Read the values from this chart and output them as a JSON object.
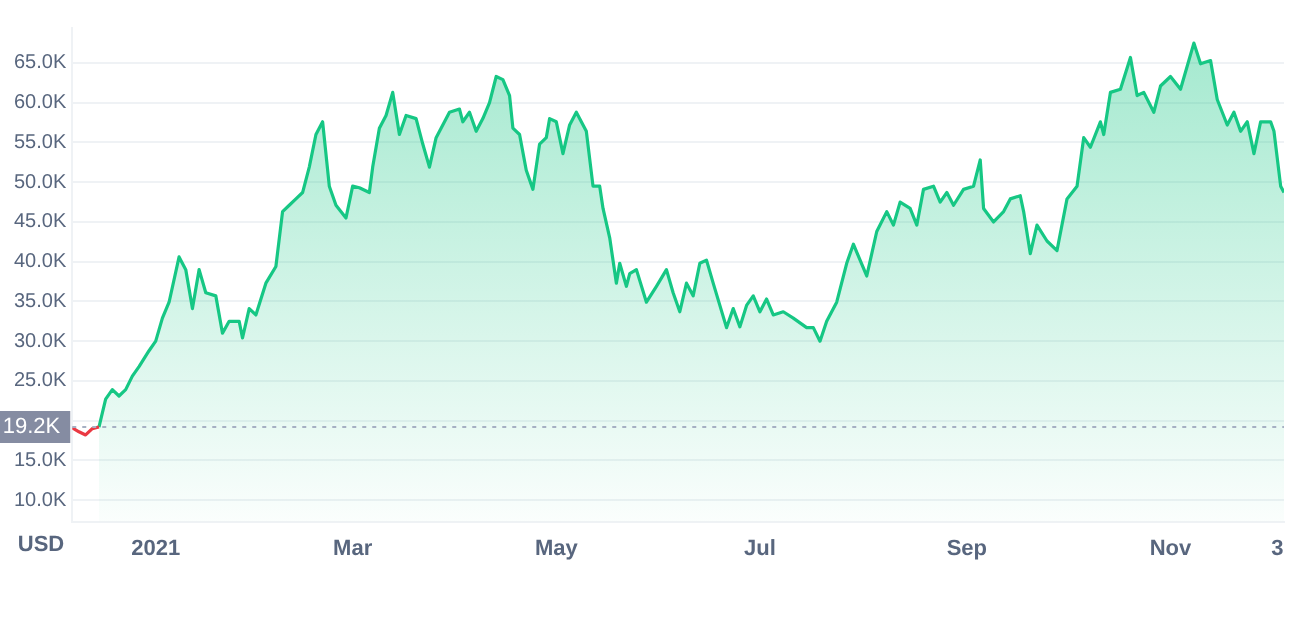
{
  "chart_data": {
    "type": "area",
    "ylabel": "USD",
    "xlim": [
      "2020-12-07",
      "2021-12-05"
    ],
    "ylim": [
      7300,
      69400
    ],
    "xticks": [
      {
        "value": "2021-01-01",
        "label": "2021"
      },
      {
        "value": "2021-03-01",
        "label": "Mar"
      },
      {
        "value": "2021-05-01",
        "label": "May"
      },
      {
        "value": "2021-07-01",
        "label": "Jul"
      },
      {
        "value": "2021-09-01",
        "label": "Sep"
      },
      {
        "value": "2021-11-01",
        "label": "Nov"
      },
      {
        "value": "2021-12-03",
        "label": "3"
      }
    ],
    "yticks": [
      {
        "value": 10000,
        "label": "10.0K"
      },
      {
        "value": 15000,
        "label": "15.0K"
      },
      {
        "value": 20000,
        "label": null
      },
      {
        "value": 25000,
        "label": "25.0K"
      },
      {
        "value": 30000,
        "label": "30.0K"
      },
      {
        "value": 35000,
        "label": "35.0K"
      },
      {
        "value": 40000,
        "label": "40.0K"
      },
      {
        "value": 45000,
        "label": "45.0K"
      },
      {
        "value": 50000,
        "label": "50.0K"
      },
      {
        "value": 55000,
        "label": "55.0K"
      },
      {
        "value": 60000,
        "label": "60.0K"
      },
      {
        "value": 65000,
        "label": "65.0K"
      }
    ],
    "grid": "y",
    "marker": "none",
    "ref_lines": [
      {
        "axis": "y",
        "value": 19200,
        "label": "19.2K",
        "color": "#a6b0c3",
        "line_style": "dotted"
      }
    ],
    "series": [
      {
        "type": "line",
        "color": "#ea3943",
        "x": [
          "2020-12-07",
          "2020-12-09",
          "2020-12-11",
          "2020-12-13",
          "2020-12-15"
        ],
        "values": [
          19100,
          18600,
          18200,
          19000,
          19200
        ]
      },
      {
        "color": "#16c784",
        "x": [
          "2020-12-15",
          "2020-12-17",
          "2020-12-19",
          "2020-12-21",
          "2020-12-23",
          "2020-12-25",
          "2020-12-27",
          "2020-12-30",
          "2021-01-01",
          "2021-01-03",
          "2021-01-05",
          "2021-01-08",
          "2021-01-10",
          "2021-01-12",
          "2021-01-14",
          "2021-01-16",
          "2021-01-19",
          "2021-01-21",
          "2021-01-23",
          "2021-01-26",
          "2021-01-27",
          "2021-01-29",
          "2021-01-31",
          "2021-02-03",
          "2021-02-06",
          "2021-02-08",
          "2021-02-10",
          "2021-02-12",
          "2021-02-14",
          "2021-02-16",
          "2021-02-18",
          "2021-02-20",
          "2021-02-22",
          "2021-02-24",
          "2021-02-27",
          "2021-03-01",
          "2021-03-03",
          "2021-03-06",
          "2021-03-07",
          "2021-03-09",
          "2021-03-11",
          "2021-03-13",
          "2021-03-15",
          "2021-03-17",
          "2021-03-20",
          "2021-03-22",
          "2021-03-24",
          "2021-03-26",
          "2021-03-30",
          "2021-04-02",
          "2021-04-03",
          "2021-04-05",
          "2021-04-07",
          "2021-04-09",
          "2021-04-11",
          "2021-04-13",
          "2021-04-15",
          "2021-04-17",
          "2021-04-18",
          "2021-04-20",
          "2021-04-22",
          "2021-04-24",
          "2021-04-26",
          "2021-04-28",
          "2021-04-29",
          "2021-05-01",
          "2021-05-03",
          "2021-05-05",
          "2021-05-07",
          "2021-05-10",
          "2021-05-12",
          "2021-05-14",
          "2021-05-15",
          "2021-05-17",
          "2021-05-19",
          "2021-05-20",
          "2021-05-22",
          "2021-05-23",
          "2021-05-25",
          "2021-05-28",
          "2021-05-31",
          "2021-06-03",
          "2021-06-05",
          "2021-06-07",
          "2021-06-09",
          "2021-06-11",
          "2021-06-13",
          "2021-06-15",
          "2021-06-17",
          "2021-06-21",
          "2021-06-23",
          "2021-06-25",
          "2021-06-27",
          "2021-06-29",
          "2021-07-01",
          "2021-07-03",
          "2021-07-05",
          "2021-07-08",
          "2021-07-11",
          "2021-07-15",
          "2021-07-17",
          "2021-07-19",
          "2021-07-21",
          "2021-07-24",
          "2021-07-27",
          "2021-07-29",
          "2021-08-02",
          "2021-08-05",
          "2021-08-08",
          "2021-08-10",
          "2021-08-12",
          "2021-08-15",
          "2021-08-17",
          "2021-08-19",
          "2021-08-22",
          "2021-08-24",
          "2021-08-26",
          "2021-08-28",
          "2021-08-31",
          "2021-09-03",
          "2021-09-05",
          "2021-09-06",
          "2021-09-09",
          "2021-09-12",
          "2021-09-14",
          "2021-09-17",
          "2021-09-18",
          "2021-09-20",
          "2021-09-22",
          "2021-09-25",
          "2021-09-28",
          "2021-10-01",
          "2021-10-04",
          "2021-10-06",
          "2021-10-08",
          "2021-10-11",
          "2021-10-12",
          "2021-10-14",
          "2021-10-17",
          "2021-10-20",
          "2021-10-22",
          "2021-10-24",
          "2021-10-27",
          "2021-10-29",
          "2021-11-01",
          "2021-11-04",
          "2021-11-08",
          "2021-11-10",
          "2021-11-13",
          "2021-11-15",
          "2021-11-18",
          "2021-11-20",
          "2021-11-22",
          "2021-11-24",
          "2021-11-26",
          "2021-11-28",
          "2021-12-01",
          "2021-12-02",
          "2021-12-04",
          "2021-12-05"
        ],
        "values": [
          19200,
          22700,
          23900,
          23100,
          23900,
          25600,
          26800,
          28800,
          30000,
          32900,
          34900,
          40600,
          39000,
          34100,
          39000,
          36100,
          35700,
          31000,
          32500,
          32500,
          30400,
          34100,
          33300,
          37300,
          39400,
          46300,
          47100,
          47900,
          48700,
          51900,
          56000,
          57600,
          49500,
          47100,
          45500,
          49500,
          49300,
          48700,
          51900,
          56800,
          58400,
          61300,
          56000,
          58400,
          58000,
          54800,
          51900,
          55600,
          58800,
          59200,
          57600,
          58800,
          56400,
          58000,
          60000,
          63300,
          62900,
          60900,
          56800,
          56000,
          51500,
          49100,
          54800,
          55600,
          58000,
          57600,
          53600,
          57200,
          58800,
          56400,
          49500,
          49500,
          46700,
          43000,
          37300,
          39800,
          36900,
          38500,
          39000,
          34900,
          36900,
          39000,
          36100,
          33700,
          37300,
          35700,
          39800,
          40200,
          37300,
          31700,
          34100,
          31800,
          34500,
          35700,
          33700,
          35300,
          33300,
          33700,
          32900,
          31700,
          31700,
          30000,
          32500,
          34900,
          39800,
          42200,
          38200,
          43800,
          46300,
          44600,
          47500,
          46700,
          44600,
          49100,
          49500,
          47500,
          48700,
          47100,
          49100,
          49500,
          52800,
          46700,
          45000,
          46300,
          47900,
          48300,
          46300,
          41000,
          44600,
          42600,
          41400,
          47900,
          49500,
          55600,
          54400,
          57600,
          56000,
          61300,
          61700,
          65700,
          60900,
          61300,
          58800,
          62100,
          63300,
          61700,
          67500,
          64900,
          65300,
          60400,
          57200,
          58800,
          56400,
          57600,
          53600,
          57600,
          57600,
          56400,
          49500,
          48700
        ]
      }
    ]
  }
}
